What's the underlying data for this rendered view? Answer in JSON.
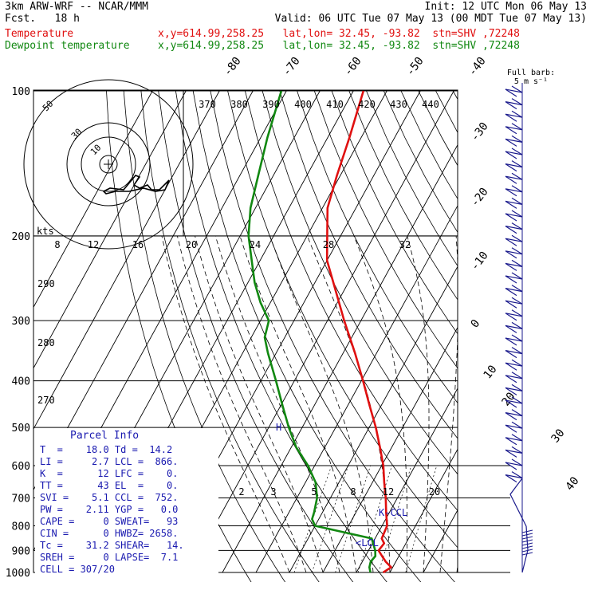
{
  "header": {
    "title": "3km ARW-WRF -- NCAR/MMM",
    "fcst": "Fcst.   18 h",
    "init": "Init: 12 UTC Mon 06 May 13",
    "valid": "Valid: 06 UTC Tue 07 May 13 (00 MDT Tue 07 May 13)",
    "temp_label": "Temperature",
    "temp_loc": "x,y=614.99,258.25   lat,lon= 32.45, -93.82  stn=SHV ,72248",
    "dew_label": "Dewpoint temperature",
    "dew_loc": "x,y=614.99,258.25   lat,lon= 32.45, -93.82  stn=SHV ,72248"
  },
  "colors": {
    "temperature": "#e01010",
    "dewpoint": "#118811",
    "wind": "#1a1a8c",
    "text_blue": "#1a1ab0"
  },
  "chart_data": {
    "type": "line",
    "pressure_levels": [
      "100",
      "200",
      "300",
      "400",
      "500",
      "600",
      "700",
      "800",
      "900",
      "1000"
    ],
    "skewed_isotherm_labels": [
      "-80",
      "-70",
      "-60",
      "-50",
      "-40",
      "-30",
      "-20",
      "-10",
      "0",
      "10",
      "20",
      "30",
      "40"
    ],
    "theta_e_labels": [
      "370",
      "380",
      "390",
      "400",
      "410",
      "420",
      "430",
      "440"
    ],
    "dry_adiabat_labels": [
      "290",
      "280",
      "270"
    ],
    "mixing_ratio_labels": [
      "2",
      "3",
      "5",
      "8",
      "12",
      "20"
    ],
    "hodograph_speed_labels": [
      "8",
      "12",
      "16",
      "20",
      "24",
      "28",
      "32"
    ],
    "hodograph_unit": "kts",
    "hodograph_rings": [
      "50",
      "30",
      "10"
    ],
    "wind_label": "Full barb:\n5 m s⁻¹",
    "marker_labels": [
      "K-CCL",
      "<LCL",
      "H"
    ],
    "series": [
      {
        "name": "Temperature",
        "points": [
          [
            1000,
            18.0
          ],
          [
            975,
            19.5
          ],
          [
            950,
            17.0
          ],
          [
            925,
            15.0
          ],
          [
            900,
            13.0
          ],
          [
            870,
            13.5
          ],
          [
            850,
            12.0
          ],
          [
            800,
            11.5
          ],
          [
            750,
            9.0
          ],
          [
            700,
            6.5
          ],
          [
            650,
            3.5
          ],
          [
            600,
            0.5
          ],
          [
            550,
            -3.5
          ],
          [
            500,
            -8.0
          ],
          [
            450,
            -13.5
          ],
          [
            400,
            -19.5
          ],
          [
            350,
            -26.5
          ],
          [
            300,
            -35.0
          ],
          [
            250,
            -44.5
          ],
          [
            225,
            -50.0
          ],
          [
            200,
            -54.0
          ],
          [
            175,
            -58.5
          ],
          [
            150,
            -61.0
          ],
          [
            125,
            -63.5
          ],
          [
            100,
            -67.0
          ]
        ]
      },
      {
        "name": "Dewpoint temperature",
        "points": [
          [
            1000,
            14.2
          ],
          [
            975,
            13.0
          ],
          [
            950,
            12.5
          ],
          [
            925,
            13.0
          ],
          [
            900,
            12.0
          ],
          [
            850,
            9.0
          ],
          [
            800,
            -10.0
          ],
          [
            775,
            -12.0
          ],
          [
            750,
            -12.5
          ],
          [
            700,
            -14.0
          ],
          [
            650,
            -17.0
          ],
          [
            600,
            -22.0
          ],
          [
            550,
            -28.5
          ],
          [
            500,
            -34.0
          ],
          [
            450,
            -39.5
          ],
          [
            400,
            -45.5
          ],
          [
            350,
            -52.5
          ],
          [
            325,
            -56.0
          ],
          [
            300,
            -57.5
          ],
          [
            275,
            -63.0
          ],
          [
            250,
            -68.0
          ],
          [
            225,
            -72.5
          ],
          [
            200,
            -77.5
          ],
          [
            175,
            -81.5
          ],
          [
            150,
            -84.5
          ],
          [
            125,
            -88.0
          ],
          [
            100,
            -91.5
          ]
        ]
      }
    ]
  },
  "parcel": {
    "title": "Parcel Info",
    "rows": [
      "T  =    18.0 Td =  14.2",
      "LI =     2.7 LCL =  866.",
      "K  =      12 LFC =    0.",
      "TT =      43 EL  =    0.",
      "SVI =    5.1 CCL =  752.",
      "PW =    2.11 YGP =   0.0",
      "CAPE =     0 SWEAT=   93",
      "CIN =      0 HWBZ= 2658.",
      "Tc =    31.2 SHEAR=   14.",
      "SREH =     0 LAPSE=  7.1",
      "CELL = 307/20"
    ]
  }
}
